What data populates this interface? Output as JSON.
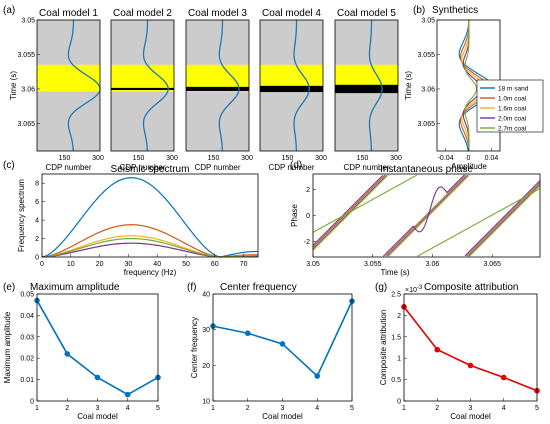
{
  "colors": {
    "trace": "#1f77b4",
    "gray": "#cccccc",
    "yellow": "#ffff00",
    "c1": "#0072BD",
    "c2": "#D95319",
    "c3": "#EDB120",
    "c4": "#7E2F8E",
    "c5": "#77AC30",
    "red": "#e00000"
  },
  "chart_data": [
    {
      "panel": "(a)",
      "type": "line",
      "titles": [
        "Coal model 1",
        "Coal model 2",
        "Coal model 3",
        "Coal model 4",
        "Coal model 5"
      ],
      "ylabel": "Time (s)",
      "xlabel": "CDP number",
      "yticks": [
        "3.05",
        "3.055",
        "3.06",
        "3.065"
      ],
      "ylim": [
        3.05,
        3.069
      ],
      "xticks": [
        "150",
        "300"
      ],
      "yellow_band": [
        3.0565,
        3.0604
      ],
      "coal_bar_thickness": [
        0,
        0.0003,
        0.0006,
        0.0009,
        0.0012
      ],
      "bar_center": 3.06,
      "wavelet_amp": [
        1.0,
        0.78,
        0.62,
        0.48,
        0.4
      ]
    },
    {
      "panel": "(b)",
      "type": "line",
      "title": "Synthetics",
      "ylabel": "Time (s)",
      "xlabel": "Amplitude",
      "xticks": [
        "-0.04",
        "0",
        "0.04"
      ],
      "yticks": [
        "3.05",
        "3.055",
        "3.06",
        "3.065"
      ],
      "xlim": [
        -0.055,
        0.055
      ],
      "ylim": [
        3.05,
        3.069
      ],
      "series": [
        {
          "name": "18 m sand",
          "amp": 0.045
        },
        {
          "name": "1.0m coal",
          "amp": 0.037
        },
        {
          "name": "1.6m coal",
          "amp": 0.03
        },
        {
          "name": "2.0m coal",
          "amp": 0.022
        },
        {
          "name": "2.7m coal",
          "amp": 0.014
        }
      ]
    },
    {
      "panel": "(c)",
      "type": "line",
      "title": "Seismic spectrum",
      "xlabel": "frequency (Hz)",
      "ylabel": "Frequency spectrum",
      "xticks": [
        0,
        10,
        20,
        30,
        40,
        50,
        60,
        70
      ],
      "yticks": [
        0,
        2,
        4,
        6,
        8
      ],
      "xlim": [
        0,
        75
      ],
      "ylim": [
        0,
        9
      ],
      "series": [
        {
          "peak": 8.6,
          "center": 30
        },
        {
          "peak": 3.5,
          "center": 30
        },
        {
          "peak": 2.3,
          "center": 28
        },
        {
          "peak": 1.5,
          "center": 25
        },
        {
          "peak": 2.0,
          "center": 38
        }
      ]
    },
    {
      "panel": "(d)",
      "type": "line",
      "title": "Instantaneous phase",
      "xlabel": "Time (s)",
      "ylabel": "Phase",
      "xticks": [
        "3.05",
        "3.055",
        "3.06",
        "3.065"
      ],
      "yticks": [
        -2,
        0,
        2
      ],
      "xlim": [
        3.05,
        3.069
      ],
      "ylim": [
        -3.2,
        3.2
      ]
    },
    {
      "panel": "(e)",
      "type": "line",
      "title": "Maximum amplitude",
      "xlabel": "Coal model",
      "ylabel": "Maximum amplitude",
      "x": [
        1,
        2,
        3,
        4,
        5
      ],
      "y": [
        0.047,
        0.022,
        0.011,
        0.003,
        0.011
      ],
      "xlim": [
        1,
        5
      ],
      "ylim": [
        0,
        0.05
      ],
      "yticks": [
        "0",
        "0.01",
        "0.02",
        "0.03",
        "0.04",
        "0.05"
      ]
    },
    {
      "panel": "(f)",
      "type": "line",
      "title": "Center frequency",
      "xlabel": "Coal model",
      "ylabel": "Center frequency",
      "x": [
        1,
        2,
        3,
        4,
        5
      ],
      "y": [
        31,
        29,
        26,
        17,
        38
      ],
      "xlim": [
        1,
        5
      ],
      "ylim": [
        10,
        40
      ],
      "yticks": [
        "10",
        "20",
        "30",
        "40"
      ]
    },
    {
      "panel": "(g)",
      "type": "line",
      "title": "Composite attribution",
      "xlabel": "Coal model",
      "ylabel": "Composite attribution",
      "exponent": "×10",
      "exponent_power": "-3",
      "x": [
        1,
        2,
        3,
        4,
        5
      ],
      "y": [
        2.2,
        1.2,
        0.83,
        0.55,
        0.24
      ],
      "xlim": [
        1,
        5
      ],
      "ylim": [
        0,
        2.5
      ],
      "yticks": [
        "0",
        "0.5",
        "1",
        "1.5",
        "2",
        "2.5"
      ]
    }
  ]
}
